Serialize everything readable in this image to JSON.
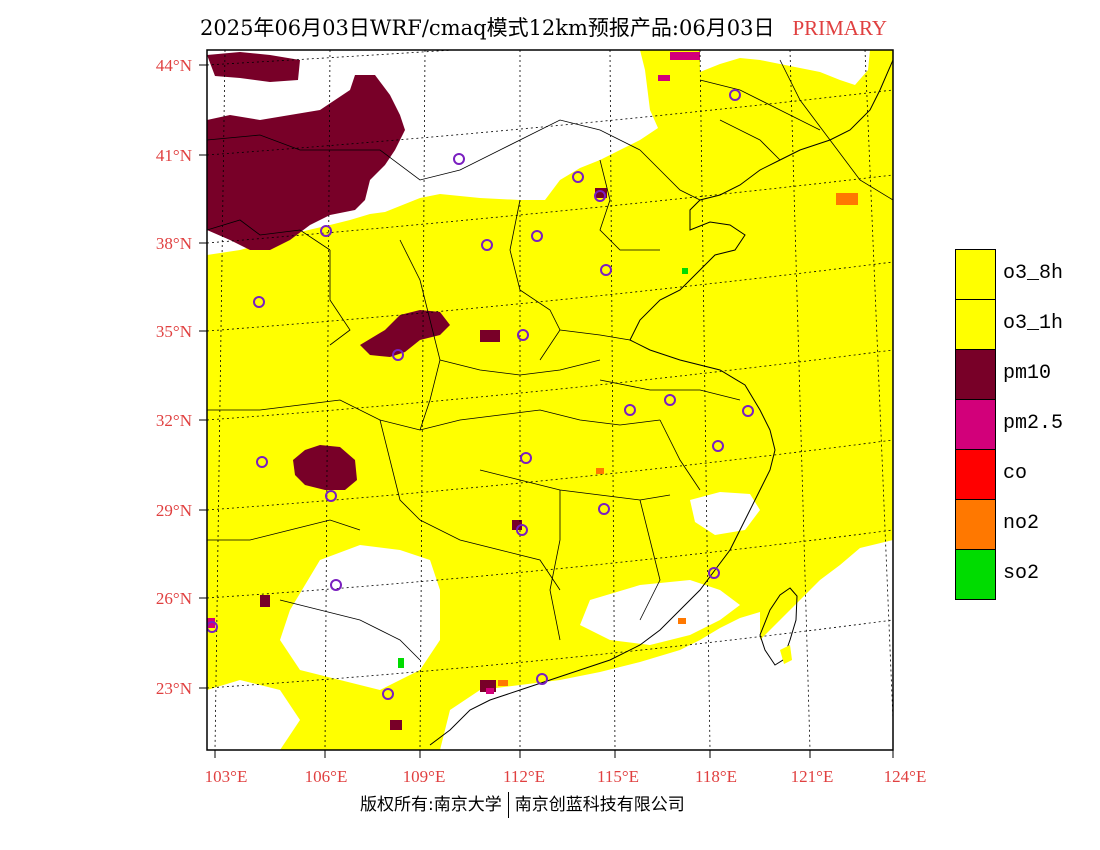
{
  "header": {
    "title": "2025年06月03日WRF/cmaq模式12km预报产品:06月03日",
    "badge": "PRIMARY"
  },
  "map": {
    "lat_labels": [
      "44°N",
      "41°N",
      "38°N",
      "35°N",
      "32°N",
      "29°N",
      "26°N",
      "23°N"
    ],
    "lon_labels": [
      "103°E",
      "106°E",
      "109°E",
      "112°E",
      "115°E",
      "118°E",
      "121°E",
      "124°E"
    ],
    "colors": {
      "land_fill": "#ffff00",
      "unfilled": "#ffffff",
      "pm10": "#780028",
      "pm2_5": "#d2007a",
      "no2": "#ff7800",
      "so2": "#00dc00",
      "station_marker": "#7a1fc0"
    }
  },
  "legend": {
    "items": [
      {
        "label": "o3_8h",
        "color": "#ffff00"
      },
      {
        "label": "o3_1h",
        "color": "#ffff00"
      },
      {
        "label": "pm10",
        "color": "#780028"
      },
      {
        "label": "pm2.5",
        "color": "#d2007a"
      },
      {
        "label": "co",
        "color": "#ff0000"
      },
      {
        "label": "no2",
        "color": "#ff7800"
      },
      {
        "label": "so2",
        "color": "#00dc00"
      }
    ]
  },
  "footer": {
    "left": "版权所有:南京大学",
    "right": "南京创蓝科技有限公司"
  }
}
